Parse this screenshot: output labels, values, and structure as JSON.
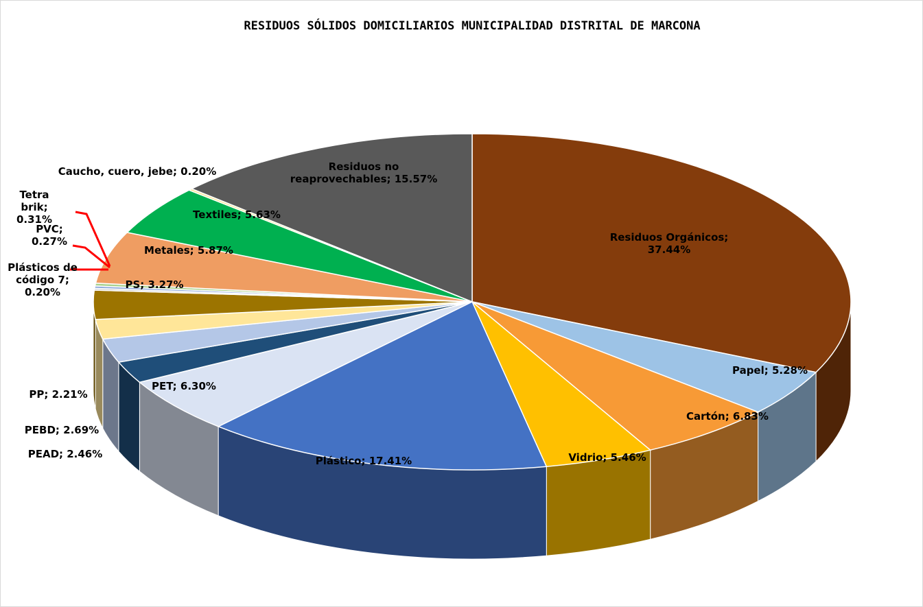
{
  "chart_data": {
    "type": "pie",
    "title": "RESIDUOS SÓLIDOS DOMICILIARIOS MUNICIPALIDAD DISTRITAL DE MARCONA",
    "categories": [
      "Residuos Orgánicos",
      "Papel",
      "Cartón",
      "Vidrio",
      "Plástico",
      "PET",
      "PEAD",
      "PEBD",
      "PP",
      "PS",
      "Plásticos de código 7",
      "PVC",
      "Tetra brik",
      "Metales",
      "Textiles",
      "Caucho, cuero, jebe",
      "Residuos no reaprovechables"
    ],
    "values": [
      37.44,
      5.28,
      6.83,
      5.46,
      17.41,
      6.3,
      2.46,
      2.69,
      2.21,
      3.27,
      0.2,
      0.27,
      0.31,
      5.87,
      5.63,
      0.2,
      15.57
    ],
    "value_labels": [
      "Residuos Orgánicos;\n37.44%",
      "Papel; 5.28%",
      "Cartón; 6.83%",
      "Vidrio; 5.46%",
      "Plástico; 17.41%",
      "PET; 6.30%",
      "PEAD; 2.46%",
      "PEBD;  2.69%",
      "PP; 2.21%",
      "PS; 3.27%",
      "Plásticos de\ncódigo 7;\n0.20%",
      "PVC;\n0.27%",
      "Tetra\nbrik;\n0.31%",
      "Metales; 5.87%",
      "Textiles; 5.63%",
      "Caucho, cuero, jebe; 0.20%",
      "Residuos no\nreaprovechables; 15.57%"
    ],
    "colors": [
      "#843c0c",
      "#9dc3e6",
      "#f79a36",
      "#ffc000",
      "#4472c4",
      "#dae3f3",
      "#1f4e79",
      "#b4c7e7",
      "#ffe699",
      "#9c7400",
      "#c9c9c9",
      "#8faadc",
      "#a9d18e",
      "#ef9d62",
      "#00b050",
      "#ffe699",
      "#595959"
    ]
  }
}
